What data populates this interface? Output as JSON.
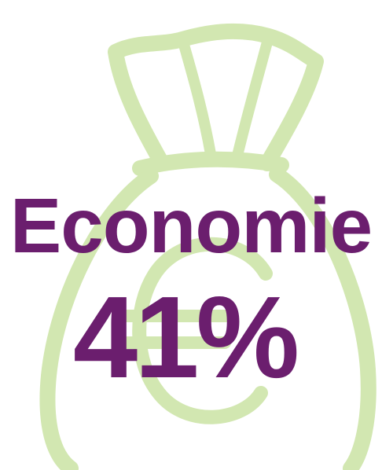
{
  "colors": {
    "text": "#6b1e6e",
    "illustration_stroke": "#d2e7b1",
    "background": "#ffffff"
  },
  "illustration": {
    "icon": "money-bag-euro-icon"
  },
  "stat": {
    "label": "Economie",
    "value": "41%"
  }
}
